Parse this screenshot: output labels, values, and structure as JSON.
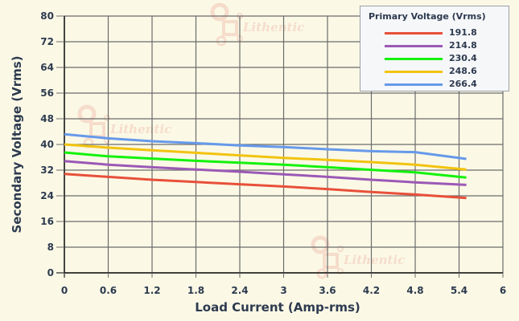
{
  "chart_data": {
    "type": "line",
    "title": "",
    "xlabel": "Load Current (Amp-rms)",
    "ylabel": "Secondary Voltage (Vrms)",
    "xlim": [
      0,
      6
    ],
    "ylim": [
      0,
      80
    ],
    "x_ticks": [
      "0",
      "0.6",
      "1.2",
      "1.8",
      "2.4",
      "3",
      "3.6",
      "4.2",
      "4.8",
      "5.4",
      "6"
    ],
    "y_ticks": [
      "0",
      "8",
      "16",
      "24",
      "32",
      "40",
      "48",
      "56",
      "64",
      "72",
      "80"
    ],
    "grid": true,
    "legend_title": "Primary Voltage (Vrms)",
    "legend_position": "top-right",
    "x": [
      0,
      0.6,
      1.2,
      1.8,
      2.4,
      3.0,
      3.6,
      4.2,
      4.8,
      5.5
    ],
    "series": [
      {
        "name": "191.8",
        "color": "#e8503a",
        "values": [
          30.8,
          29.9,
          29.0,
          28.3,
          27.6,
          26.9,
          26.1,
          25.2,
          24.4,
          23.3
        ]
      },
      {
        "name": "214.8",
        "color": "#9b59b6",
        "values": [
          34.8,
          33.7,
          32.9,
          32.2,
          31.5,
          30.7,
          29.9,
          29.0,
          28.2,
          27.4
        ]
      },
      {
        "name": "230.4",
        "color": "#13f20c",
        "values": [
          37.5,
          36.3,
          35.6,
          34.9,
          34.3,
          33.7,
          32.9,
          32.1,
          31.3,
          29.7
        ]
      },
      {
        "name": "248.6",
        "color": "#f2c30f",
        "values": [
          40.0,
          39.0,
          38.2,
          37.4,
          36.6,
          35.8,
          35.2,
          34.5,
          33.7,
          32.2
        ]
      },
      {
        "name": "266.4",
        "color": "#6699ea",
        "values": [
          43.2,
          41.9,
          41.0,
          40.4,
          39.7,
          39.2,
          38.5,
          37.9,
          37.6,
          35.5
        ]
      }
    ]
  },
  "watermark": "Lithentic"
}
